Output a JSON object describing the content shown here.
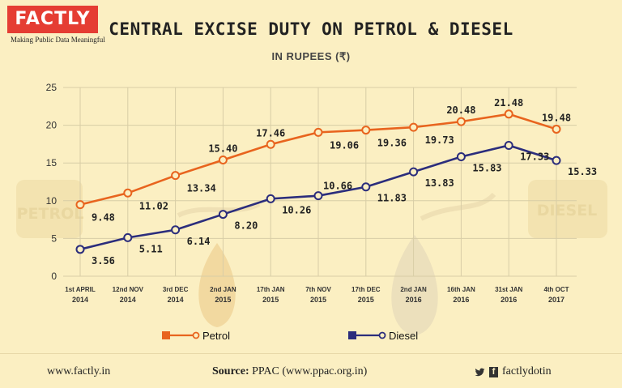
{
  "brand": {
    "logo": "FACTLY",
    "tagline": "Making Public Data Meaningful"
  },
  "chart_data": {
    "type": "line",
    "title": "CENTRAL EXCISE DUTY ON PETROL & DIESEL",
    "subtitle": "IN RUPEES (₹)",
    "categories": [
      {
        "line1": "1st APRIL",
        "line2": "2014"
      },
      {
        "line1": "12nd NOV",
        "line2": "2014"
      },
      {
        "line1": "3rd DEC",
        "line2": "2014"
      },
      {
        "line1": "2nd JAN",
        "line2": "2015"
      },
      {
        "line1": "17th JAN",
        "line2": "2015"
      },
      {
        "line1": "7th NOV",
        "line2": "2015"
      },
      {
        "line1": "17th DEC",
        "line2": "2015"
      },
      {
        "line1": "2nd JAN",
        "line2": "2016"
      },
      {
        "line1": "16th JAN",
        "line2": "2016"
      },
      {
        "line1": "31st JAN",
        "line2": "2016"
      },
      {
        "line1": "4th OCT",
        "line2": "2017"
      }
    ],
    "series": [
      {
        "name": "Petrol",
        "color": "#e8641e",
        "values": [
          9.48,
          11.02,
          13.34,
          15.4,
          17.46,
          19.06,
          19.36,
          19.73,
          20.48,
          21.48,
          19.48
        ],
        "labels": [
          "9.48",
          "11.02",
          "13.34",
          "15.40",
          "17.46",
          "19.06",
          "19.36",
          "19.73",
          "20.48",
          "21.48",
          "19.48"
        ]
      },
      {
        "name": "Diesel",
        "color": "#2b2d7c",
        "values": [
          3.56,
          5.11,
          6.14,
          8.2,
          10.26,
          10.66,
          11.83,
          13.83,
          15.83,
          17.33,
          15.33
        ],
        "labels": [
          "3.56",
          "5.11",
          "6.14",
          "8.20",
          "10.26",
          "10.66",
          "11.83",
          "13.83",
          "15.83",
          "17.33",
          "15.33"
        ]
      }
    ],
    "yticks": [
      "0",
      "5",
      "10",
      "15",
      "20",
      "25"
    ],
    "ylim": [
      0,
      25
    ],
    "grid": true,
    "legend": "bottom"
  },
  "background_marks": {
    "left": "PETROL",
    "right": "DIESEL"
  },
  "footer": {
    "website": "www.factly.in",
    "source_label": "Source:",
    "source_text": "PPAC (www.ppac.org.in)",
    "social_handle": "factlydotin"
  },
  "colors": {
    "background": "#fbefc2",
    "petrol": "#e8641e",
    "diesel": "#2b2d7c",
    "brand": "#e53d33"
  }
}
